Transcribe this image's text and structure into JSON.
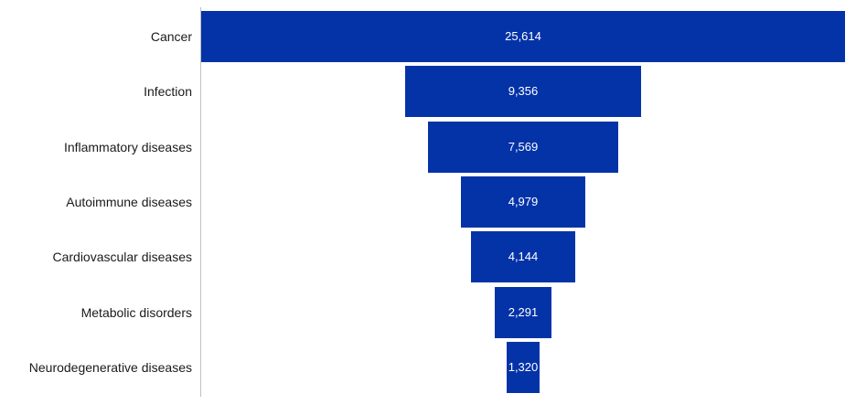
{
  "chart_data": {
    "type": "bar",
    "orientation": "horizontal-funnel",
    "categories": [
      "Cancer",
      "Infection",
      "Inflammatory diseases",
      "Autoimmune  diseases",
      "Cardiovascular diseases",
      "Metabolic disorders",
      "Neurodegenerative diseases"
    ],
    "values": [
      25614,
      9356,
      7569,
      4979,
      4144,
      2291,
      1320
    ],
    "value_labels": [
      "25,614",
      "9,356",
      "7,569",
      "4,979",
      "4,144",
      "2,291",
      "1,320"
    ],
    "bar_color": "#0433a8",
    "label_color": "#ffffff",
    "grid": false,
    "legend": "none"
  }
}
